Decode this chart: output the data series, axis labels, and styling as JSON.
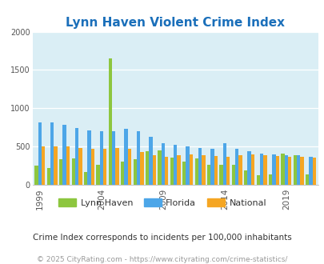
{
  "title": "Lynn Haven Violent Crime Index",
  "subtitle": "Crime Index corresponds to incidents per 100,000 inhabitants",
  "copyright": "© 2025 CityRating.com - https://www.cityrating.com/crime-statistics/",
  "years": [
    1999,
    2000,
    2001,
    2002,
    2003,
    2004,
    2005,
    2006,
    2007,
    2008,
    2009,
    2010,
    2011,
    2012,
    2013,
    2014,
    2015,
    2016,
    2017,
    2018,
    2019,
    2020,
    2021
  ],
  "lynn_haven": [
    250,
    215,
    335,
    340,
    165,
    260,
    1650,
    300,
    330,
    440,
    450,
    360,
    300,
    340,
    260,
    260,
    260,
    190,
    130,
    140,
    410,
    390,
    140
  ],
  "florida": [
    820,
    810,
    780,
    745,
    710,
    700,
    700,
    730,
    700,
    625,
    540,
    520,
    500,
    480,
    470,
    540,
    470,
    435,
    410,
    400,
    390,
    385,
    365
  ],
  "national": [
    505,
    505,
    500,
    485,
    475,
    465,
    485,
    465,
    425,
    385,
    370,
    385,
    395,
    390,
    375,
    370,
    385,
    395,
    390,
    375,
    370,
    365,
    360
  ],
  "lynn_haven_color": "#8dc63f",
  "florida_color": "#4da6e8",
  "national_color": "#f5a623",
  "plot_bg_color": "#daeef5",
  "title_color": "#1a6fba",
  "subtitle_color": "#333333",
  "copyright_color": "#999999",
  "ylim": [
    0,
    2000
  ],
  "yticks": [
    0,
    500,
    1000,
    1500,
    2000
  ],
  "xtick_years": [
    1999,
    2004,
    2009,
    2014,
    2019
  ]
}
